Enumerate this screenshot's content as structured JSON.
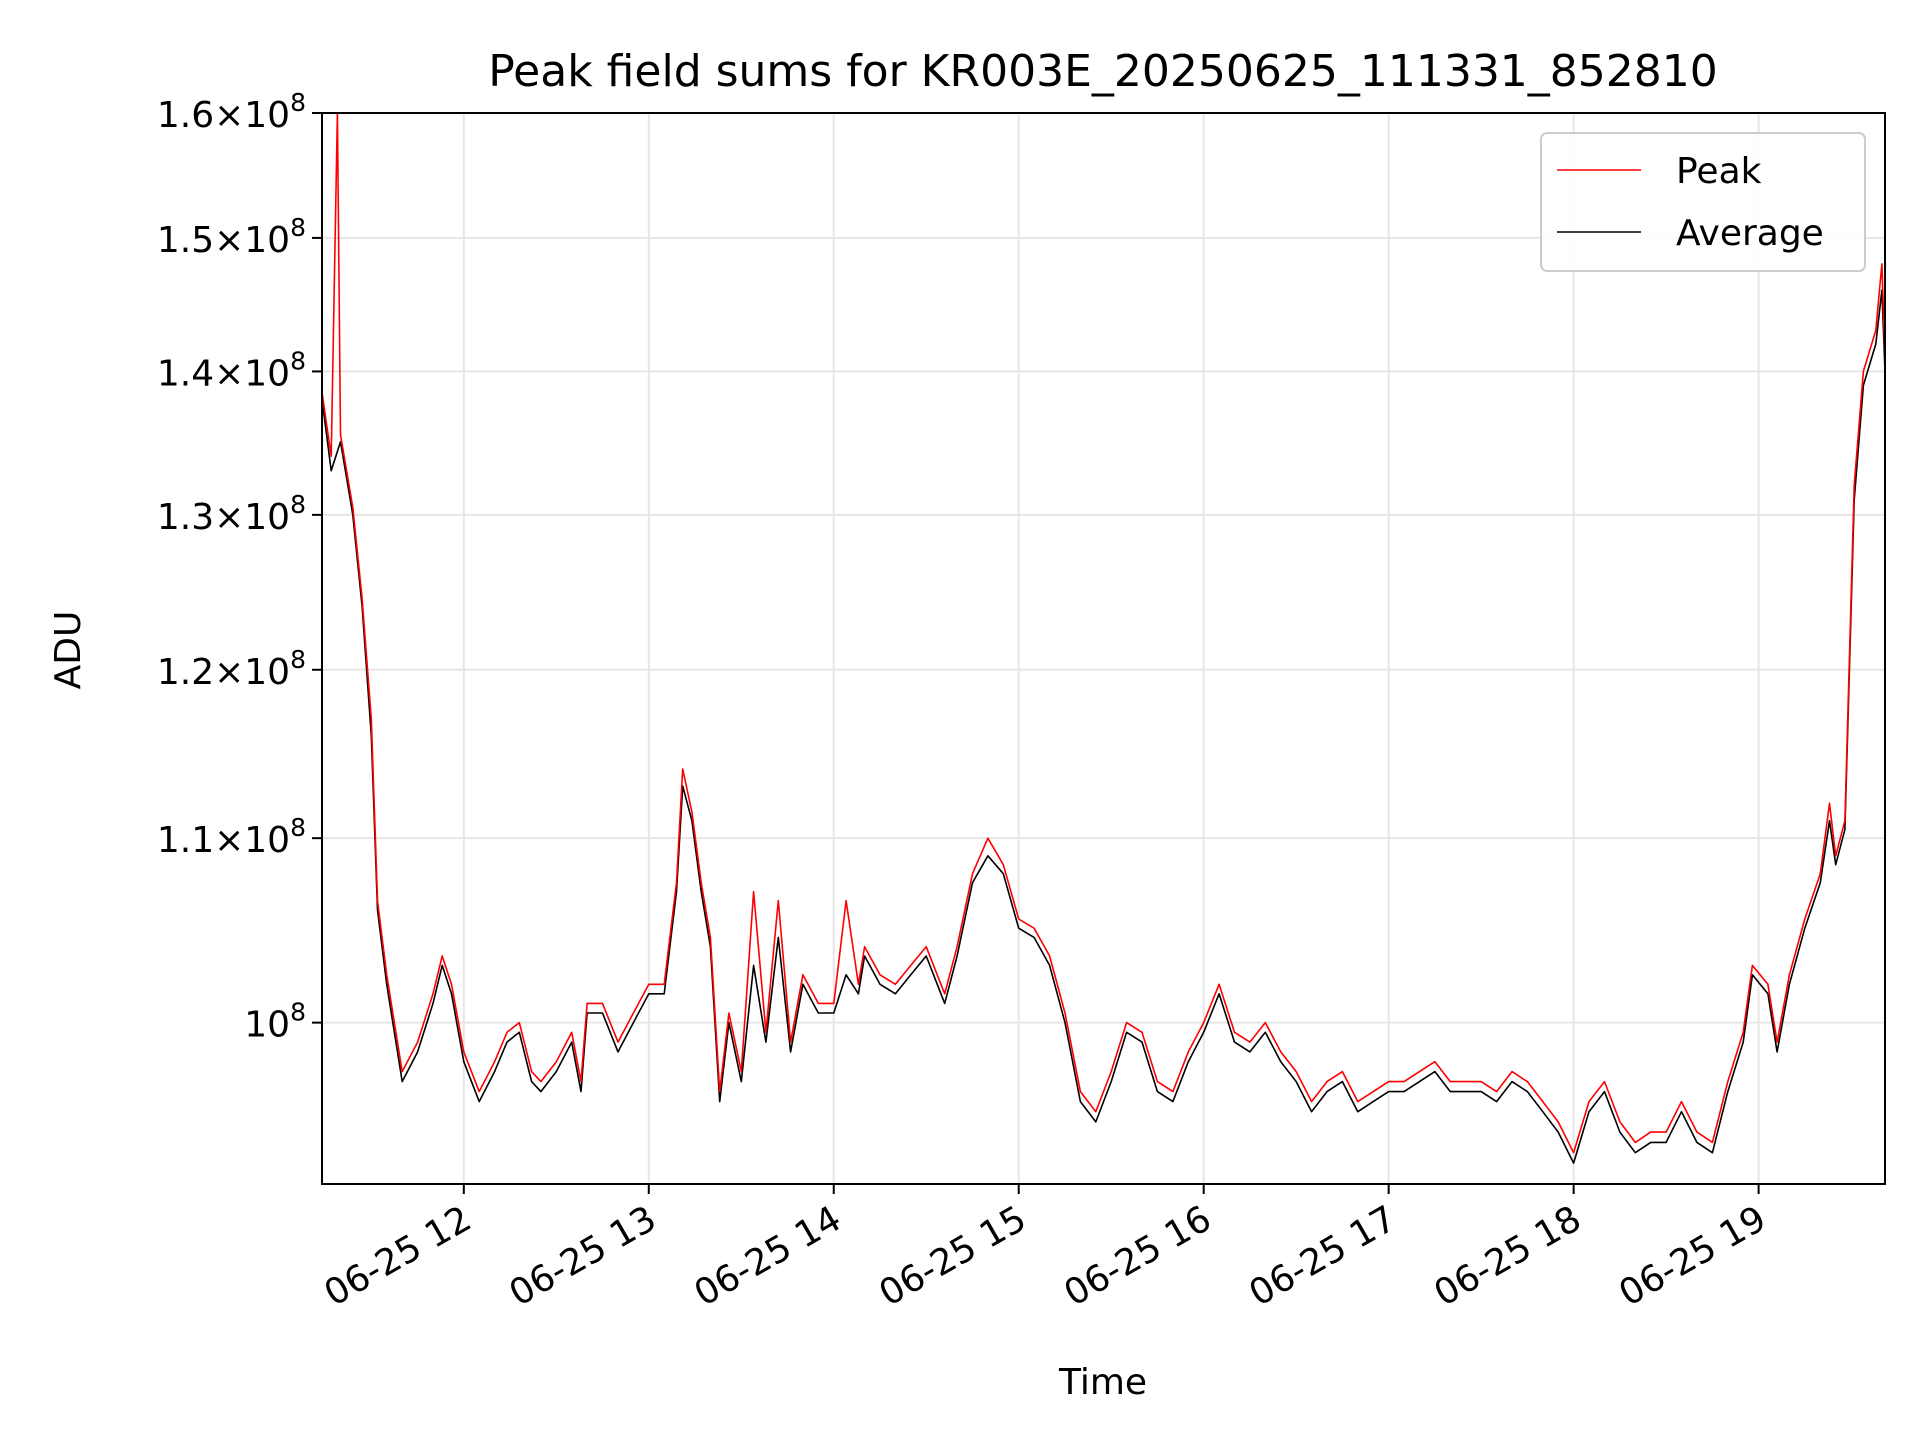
{
  "chart_data": {
    "type": "line",
    "title": "Peak field sums for KR003E_20250625_111331_852810",
    "xlabel": "Time",
    "ylabel": "ADU",
    "x_range": [
      "06-25 11:14",
      "06-25 19:41"
    ],
    "x_ticks": [
      "06-25 12",
      "06-25 13",
      "06-25 14",
      "06-25 15",
      "06-25 16",
      "06-25 17",
      "06-25 18",
      "06-25 19"
    ],
    "yscale": "log",
    "ylim": [
      92000000,
      160000000
    ],
    "y_ticks": [
      {
        "value": 100000000,
        "mantissa": "",
        "exponent": "8"
      },
      {
        "value": 110000000,
        "mantissa": "1.1",
        "exponent": "8"
      },
      {
        "value": 120000000,
        "mantissa": "1.2",
        "exponent": "8"
      },
      {
        "value": 130000000,
        "mantissa": "1.3",
        "exponent": "8"
      },
      {
        "value": 140000000,
        "mantissa": "1.4",
        "exponent": "8"
      },
      {
        "value": 150000000,
        "mantissa": "1.5",
        "exponent": "8"
      },
      {
        "value": 160000000,
        "mantissa": "1.6",
        "exponent": "8"
      }
    ],
    "grid": true,
    "legend": {
      "position": "top-right",
      "entries": [
        "Peak",
        "Average"
      ]
    },
    "colors": {
      "Peak": "#ff0000",
      "Average": "#000000"
    },
    "series": [
      {
        "name": "Average",
        "points": [
          [
            "06-25 11:14",
            138000000
          ],
          [
            "06-25 11:17",
            133000000
          ],
          [
            "06-25 11:20",
            135000000
          ],
          [
            "06-25 11:24",
            130000000
          ],
          [
            "06-25 11:27",
            124000000
          ],
          [
            "06-25 11:30",
            116000000
          ],
          [
            "06-25 11:32",
            106000000
          ],
          [
            "06-25 11:35",
            102000000
          ],
          [
            "06-25 11:40",
            97000000
          ],
          [
            "06-25 11:45",
            98500000
          ],
          [
            "06-25 11:50",
            101000000
          ],
          [
            "06-25 11:53",
            103000000
          ],
          [
            "06-25 11:56",
            101500000
          ],
          [
            "06-25 12:00",
            98000000
          ],
          [
            "06-25 12:05",
            96000000
          ],
          [
            "06-25 12:10",
            97500000
          ],
          [
            "06-25 12:14",
            99000000
          ],
          [
            "06-25 12:18",
            99500000
          ],
          [
            "06-25 12:22",
            97000000
          ],
          [
            "06-25 12:25",
            96500000
          ],
          [
            "06-25 12:30",
            97500000
          ],
          [
            "06-25 12:35",
            99000000
          ],
          [
            "06-25 12:38",
            96500000
          ],
          [
            "06-25 12:40",
            100500000
          ],
          [
            "06-25 12:45",
            100500000
          ],
          [
            "06-25 12:50",
            98500000
          ],
          [
            "06-25 12:55",
            100000000
          ],
          [
            "06-25 13:00",
            101500000
          ],
          [
            "06-25 13:05",
            101500000
          ],
          [
            "06-25 13:09",
            107000000
          ],
          [
            "06-25 13:11",
            113000000
          ],
          [
            "06-25 13:14",
            111000000
          ],
          [
            "06-25 13:17",
            107000000
          ],
          [
            "06-25 13:20",
            104000000
          ],
          [
            "06-25 13:23",
            96000000
          ],
          [
            "06-25 13:26",
            100000000
          ],
          [
            "06-25 13:30",
            97000000
          ],
          [
            "06-25 13:34",
            103000000
          ],
          [
            "06-25 13:38",
            99000000
          ],
          [
            "06-25 13:42",
            104500000
          ],
          [
            "06-25 13:46",
            98500000
          ],
          [
            "06-25 13:50",
            102000000
          ],
          [
            "06-25 13:55",
            100500000
          ],
          [
            "06-25 14:00",
            100500000
          ],
          [
            "06-25 14:04",
            102500000
          ],
          [
            "06-25 14:08",
            101500000
          ],
          [
            "06-25 14:10",
            103500000
          ],
          [
            "06-25 14:15",
            102000000
          ],
          [
            "06-25 14:20",
            101500000
          ],
          [
            "06-25 14:25",
            102500000
          ],
          [
            "06-25 14:30",
            103500000
          ],
          [
            "06-25 14:36",
            101000000
          ],
          [
            "06-25 14:40",
            103500000
          ],
          [
            "06-25 14:45",
            107500000
          ],
          [
            "06-25 14:50",
            109000000
          ],
          [
            "06-25 14:55",
            108000000
          ],
          [
            "06-25 15:00",
            105000000
          ],
          [
            "06-25 15:05",
            104500000
          ],
          [
            "06-25 15:10",
            103000000
          ],
          [
            "06-25 15:15",
            100000000
          ],
          [
            "06-25 15:20",
            96000000
          ],
          [
            "06-25 15:25",
            95000000
          ],
          [
            "06-25 15:30",
            97000000
          ],
          [
            "06-25 15:35",
            99500000
          ],
          [
            "06-25 15:40",
            99000000
          ],
          [
            "06-25 15:45",
            96500000
          ],
          [
            "06-25 15:50",
            96000000
          ],
          [
            "06-25 15:55",
            98000000
          ],
          [
            "06-25 16:00",
            99500000
          ],
          [
            "06-25 16:05",
            101500000
          ],
          [
            "06-25 16:10",
            99000000
          ],
          [
            "06-25 16:15",
            98500000
          ],
          [
            "06-25 16:20",
            99500000
          ],
          [
            "06-25 16:25",
            98000000
          ],
          [
            "06-25 16:30",
            97000000
          ],
          [
            "06-25 16:35",
            95500000
          ],
          [
            "06-25 16:40",
            96500000
          ],
          [
            "06-25 16:45",
            97000000
          ],
          [
            "06-25 16:50",
            95500000
          ],
          [
            "06-25 16:55",
            96000000
          ],
          [
            "06-25 17:00",
            96500000
          ],
          [
            "06-25 17:05",
            96500000
          ],
          [
            "06-25 17:10",
            97000000
          ],
          [
            "06-25 17:15",
            97500000
          ],
          [
            "06-25 17:20",
            96500000
          ],
          [
            "06-25 17:25",
            96500000
          ],
          [
            "06-25 17:30",
            96500000
          ],
          [
            "06-25 17:35",
            96000000
          ],
          [
            "06-25 17:40",
            97000000
          ],
          [
            "06-25 17:45",
            96500000
          ],
          [
            "06-25 17:50",
            95500000
          ],
          [
            "06-25 17:55",
            94500000
          ],
          [
            "06-25 18:00",
            93000000
          ],
          [
            "06-25 18:05",
            95500000
          ],
          [
            "06-25 18:10",
            96500000
          ],
          [
            "06-25 18:15",
            94500000
          ],
          [
            "06-25 18:20",
            93500000
          ],
          [
            "06-25 18:25",
            94000000
          ],
          [
            "06-25 18:30",
            94000000
          ],
          [
            "06-25 18:35",
            95500000
          ],
          [
            "06-25 18:40",
            94000000
          ],
          [
            "06-25 18:45",
            93500000
          ],
          [
            "06-25 18:50",
            96500000
          ],
          [
            "06-25 18:55",
            99000000
          ],
          [
            "06-25 18:58",
            102500000
          ],
          [
            "06-25 19:03",
            101500000
          ],
          [
            "06-25 19:06",
            98500000
          ],
          [
            "06-25 19:10",
            102000000
          ],
          [
            "06-25 19:15",
            105000000
          ],
          [
            "06-25 19:20",
            107500000
          ],
          [
            "06-25 19:23",
            111000000
          ],
          [
            "06-25 19:25",
            108500000
          ],
          [
            "06-25 19:28",
            110500000
          ],
          [
            "06-25 19:31",
            131000000
          ],
          [
            "06-25 19:34",
            139000000
          ],
          [
            "06-25 19:38",
            142000000
          ],
          [
            "06-25 19:40",
            146000000
          ],
          [
            "06-25 19:41",
            140000000
          ]
        ]
      },
      {
        "name": "Peak",
        "points": [
          [
            "06-25 11:14",
            138500000
          ],
          [
            "06-25 11:17",
            134000000
          ],
          [
            "06-25 11:19",
            160000000
          ],
          [
            "06-25 11:20",
            135500000
          ],
          [
            "06-25 11:24",
            130500000
          ],
          [
            "06-25 11:27",
            124500000
          ],
          [
            "06-25 11:30",
            117000000
          ],
          [
            "06-25 11:32",
            106500000
          ],
          [
            "06-25 11:35",
            102500000
          ],
          [
            "06-25 11:40",
            97500000
          ],
          [
            "06-25 11:45",
            99000000
          ],
          [
            "06-25 11:50",
            101500000
          ],
          [
            "06-25 11:53",
            103500000
          ],
          [
            "06-25 11:56",
            102000000
          ],
          [
            "06-25 12:00",
            98500000
          ],
          [
            "06-25 12:05",
            96500000
          ],
          [
            "06-25 12:10",
            98000000
          ],
          [
            "06-25 12:14",
            99500000
          ],
          [
            "06-25 12:18",
            100000000
          ],
          [
            "06-25 12:22",
            97500000
          ],
          [
            "06-25 12:25",
            97000000
          ],
          [
            "06-25 12:30",
            98000000
          ],
          [
            "06-25 12:35",
            99500000
          ],
          [
            "06-25 12:38",
            97000000
          ],
          [
            "06-25 12:40",
            101000000
          ],
          [
            "06-25 12:45",
            101000000
          ],
          [
            "06-25 12:50",
            99000000
          ],
          [
            "06-25 12:55",
            100500000
          ],
          [
            "06-25 13:00",
            102000000
          ],
          [
            "06-25 13:05",
            102000000
          ],
          [
            "06-25 13:09",
            107500000
          ],
          [
            "06-25 13:11",
            114000000
          ],
          [
            "06-25 13:14",
            111500000
          ],
          [
            "06-25 13:17",
            107500000
          ],
          [
            "06-25 13:20",
            104500000
          ],
          [
            "06-25 13:23",
            96500000
          ],
          [
            "06-25 13:26",
            100500000
          ],
          [
            "06-25 13:30",
            97500000
          ],
          [
            "06-25 13:34",
            107000000
          ],
          [
            "06-25 13:38",
            99500000
          ],
          [
            "06-25 13:42",
            106500000
          ],
          [
            "06-25 13:46",
            99000000
          ],
          [
            "06-25 13:50",
            102500000
          ],
          [
            "06-25 13:55",
            101000000
          ],
          [
            "06-25 14:00",
            101000000
          ],
          [
            "06-25 14:04",
            106500000
          ],
          [
            "06-25 14:08",
            102000000
          ],
          [
            "06-25 14:10",
            104000000
          ],
          [
            "06-25 14:15",
            102500000
          ],
          [
            "06-25 14:20",
            102000000
          ],
          [
            "06-25 14:25",
            103000000
          ],
          [
            "06-25 14:30",
            104000000
          ],
          [
            "06-25 14:36",
            101500000
          ],
          [
            "06-25 14:40",
            104000000
          ],
          [
            "06-25 14:45",
            108000000
          ],
          [
            "06-25 14:50",
            110000000
          ],
          [
            "06-25 14:55",
            108500000
          ],
          [
            "06-25 15:00",
            105500000
          ],
          [
            "06-25 15:05",
            105000000
          ],
          [
            "06-25 15:10",
            103500000
          ],
          [
            "06-25 15:15",
            100500000
          ],
          [
            "06-25 15:20",
            96500000
          ],
          [
            "06-25 15:25",
            95500000
          ],
          [
            "06-25 15:30",
            97500000
          ],
          [
            "06-25 15:35",
            100000000
          ],
          [
            "06-25 15:40",
            99500000
          ],
          [
            "06-25 15:45",
            97000000
          ],
          [
            "06-25 15:50",
            96500000
          ],
          [
            "06-25 15:55",
            98500000
          ],
          [
            "06-25 16:00",
            100000000
          ],
          [
            "06-25 16:05",
            102000000
          ],
          [
            "06-25 16:10",
            99500000
          ],
          [
            "06-25 16:15",
            99000000
          ],
          [
            "06-25 16:20",
            100000000
          ],
          [
            "06-25 16:25",
            98500000
          ],
          [
            "06-25 16:30",
            97500000
          ],
          [
            "06-25 16:35",
            96000000
          ],
          [
            "06-25 16:40",
            97000000
          ],
          [
            "06-25 16:45",
            97500000
          ],
          [
            "06-25 16:50",
            96000000
          ],
          [
            "06-25 16:55",
            96500000
          ],
          [
            "06-25 17:00",
            97000000
          ],
          [
            "06-25 17:05",
            97000000
          ],
          [
            "06-25 17:10",
            97500000
          ],
          [
            "06-25 17:15",
            98000000
          ],
          [
            "06-25 17:20",
            97000000
          ],
          [
            "06-25 17:25",
            97000000
          ],
          [
            "06-25 17:30",
            97000000
          ],
          [
            "06-25 17:35",
            96500000
          ],
          [
            "06-25 17:40",
            97500000
          ],
          [
            "06-25 17:45",
            97000000
          ],
          [
            "06-25 17:50",
            96000000
          ],
          [
            "06-25 17:55",
            95000000
          ],
          [
            "06-25 18:00",
            93500000
          ],
          [
            "06-25 18:05",
            96000000
          ],
          [
            "06-25 18:10",
            97000000
          ],
          [
            "06-25 18:15",
            95000000
          ],
          [
            "06-25 18:20",
            94000000
          ],
          [
            "06-25 18:25",
            94500000
          ],
          [
            "06-25 18:30",
            94500000
          ],
          [
            "06-25 18:35",
            96000000
          ],
          [
            "06-25 18:40",
            94500000
          ],
          [
            "06-25 18:45",
            94000000
          ],
          [
            "06-25 18:50",
            97000000
          ],
          [
            "06-25 18:55",
            99500000
          ],
          [
            "06-25 18:58",
            103000000
          ],
          [
            "06-25 19:03",
            102000000
          ],
          [
            "06-25 19:06",
            99000000
          ],
          [
            "06-25 19:10",
            102500000
          ],
          [
            "06-25 19:15",
            105500000
          ],
          [
            "06-25 19:20",
            108000000
          ],
          [
            "06-25 19:23",
            112000000
          ],
          [
            "06-25 19:25",
            109000000
          ],
          [
            "06-25 19:28",
            111000000
          ],
          [
            "06-25 19:31",
            132000000
          ],
          [
            "06-25 19:34",
            140000000
          ],
          [
            "06-25 19:38",
            143000000
          ],
          [
            "06-25 19:40",
            148000000
          ],
          [
            "06-25 19:41",
            141000000
          ]
        ]
      }
    ]
  }
}
